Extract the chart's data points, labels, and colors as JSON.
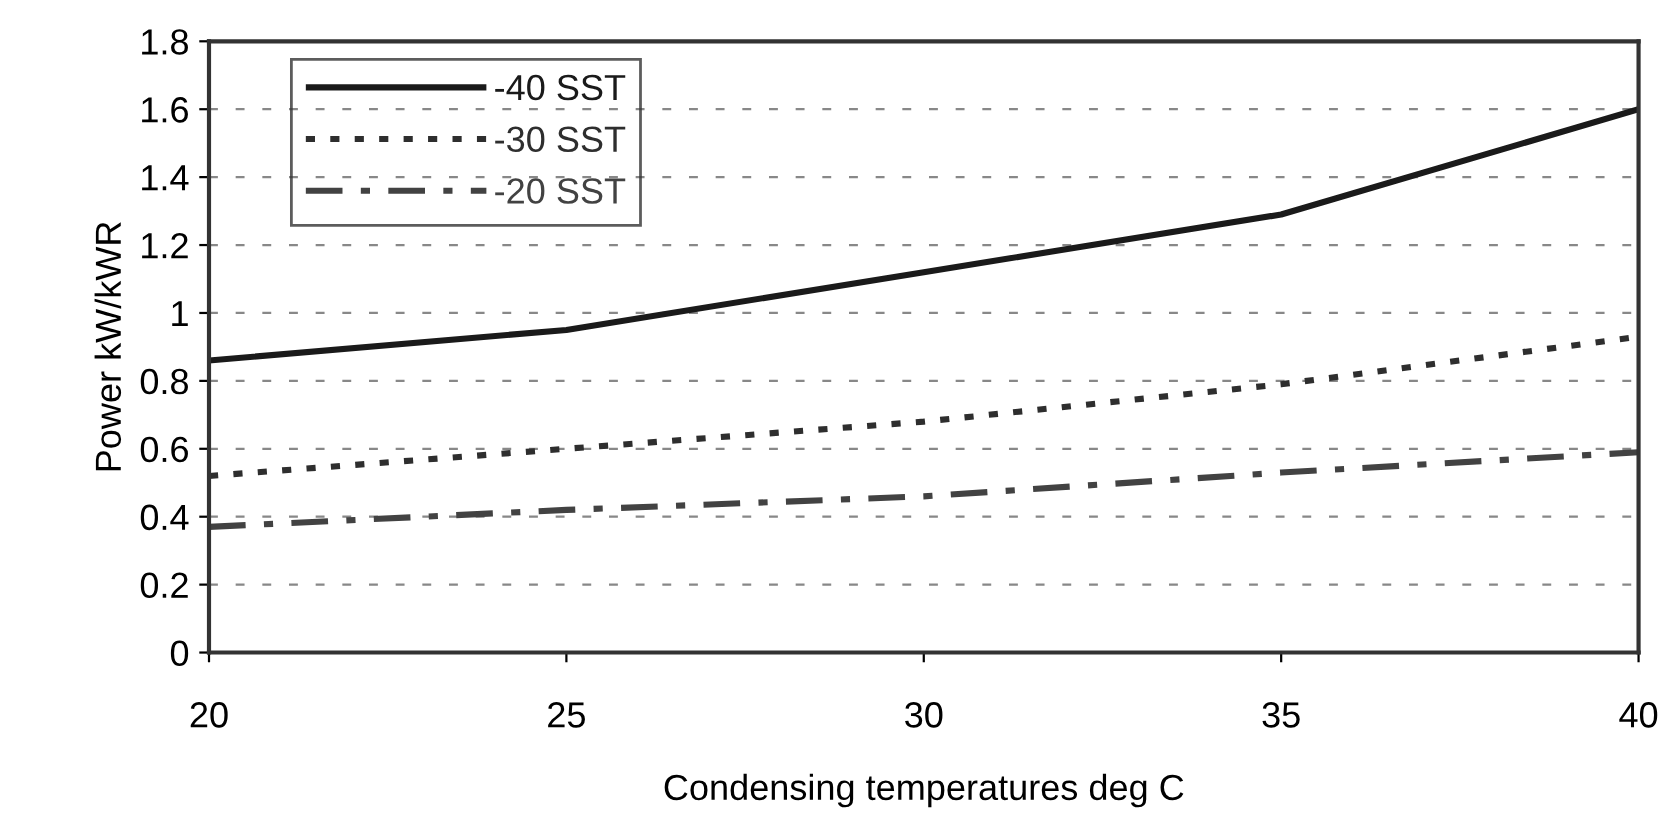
{
  "chart_data": {
    "type": "line",
    "xlabel": "Condensing temperatures deg C",
    "ylabel": "Power kW/kWR",
    "x": [
      20,
      25,
      30,
      35,
      40
    ],
    "series": [
      {
        "name": "-40 SST",
        "color": "#1a1a1a",
        "line_style": "solid",
        "values": [
          0.86,
          0.95,
          1.12,
          1.29,
          1.6
        ]
      },
      {
        "name": "-30 SST",
        "color": "#2e2e2e",
        "line_style": "dotted",
        "values": [
          0.52,
          0.6,
          0.68,
          0.79,
          0.93
        ]
      },
      {
        "name": "-20 SST",
        "color": "#424242",
        "line_style": "dashdot",
        "values": [
          0.37,
          0.42,
          0.46,
          0.53,
          0.59
        ]
      }
    ],
    "xlim": [
      20,
      40
    ],
    "xticks": [
      20,
      25,
      30,
      35,
      40
    ],
    "ylim": [
      0,
      1.8
    ],
    "yticks": [
      0,
      {
        "value": 0.2,
        "label": "0.2"
      },
      {
        "value": 0.4,
        "label": "0.4"
      },
      {
        "value": 0.6,
        "label": "0.6"
      },
      {
        "value": 0.8,
        "label": "0.8"
      },
      1,
      {
        "value": 1.2,
        "label": "1.2"
      },
      {
        "value": 1.4,
        "label": "1.4"
      },
      {
        "value": 1.6,
        "label": "1.6"
      },
      {
        "value": 1.8,
        "label": "1.8"
      }
    ],
    "grid": "y",
    "legend": "top left",
    "marker": "none"
  }
}
